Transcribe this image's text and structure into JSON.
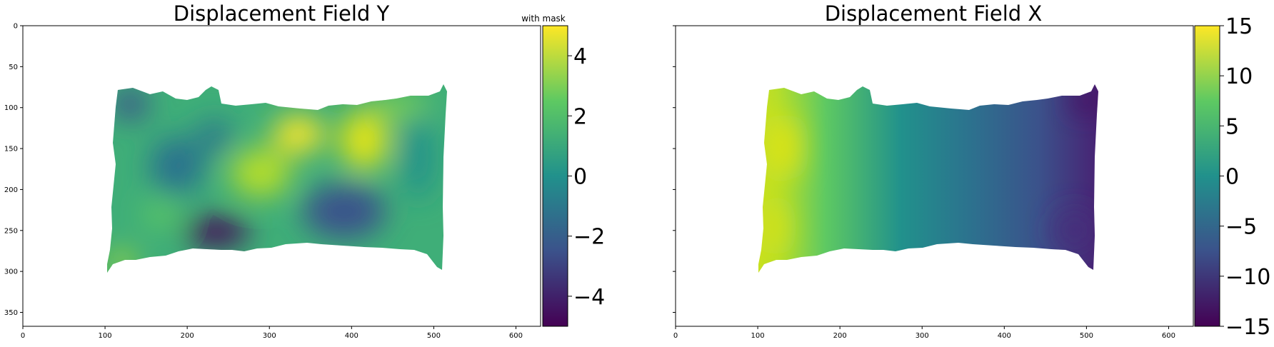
{
  "colormap": [
    "#440154",
    "#3b528b",
    "#21918c",
    "#5ec962",
    "#fde725"
  ],
  "chart_data": [
    {
      "type": "heatmap",
      "title": "Displacement Field Y",
      "xticks": [
        0,
        100,
        200,
        300,
        400,
        500,
        600
      ],
      "yticks": [
        0,
        50,
        100,
        150,
        200,
        250,
        300,
        350
      ],
      "xlim": [
        0,
        630
      ],
      "ylim": [
        367,
        0
      ],
      "colorbar": {
        "range": [
          -5,
          5
        ],
        "ticks": [
          "−4",
          "−2",
          "0",
          "2",
          "4"
        ],
        "tick_values": [
          -4,
          -2,
          0,
          2,
          4
        ],
        "label": "with mask"
      }
    },
    {
      "type": "heatmap",
      "title": "Displacement Field X",
      "xticks": [
        0,
        100,
        200,
        300,
        400,
        500,
        600
      ],
      "yticks": [],
      "xlim": [
        0,
        630
      ],
      "ylim": [
        367,
        0
      ],
      "colorbar": {
        "range": [
          -15,
          15
        ],
        "ticks": [
          "−15",
          "−10",
          "−5",
          "0",
          "5",
          "10",
          "15"
        ],
        "tick_values": [
          -15,
          -10,
          -5,
          0,
          5,
          10,
          15
        ]
      }
    }
  ]
}
